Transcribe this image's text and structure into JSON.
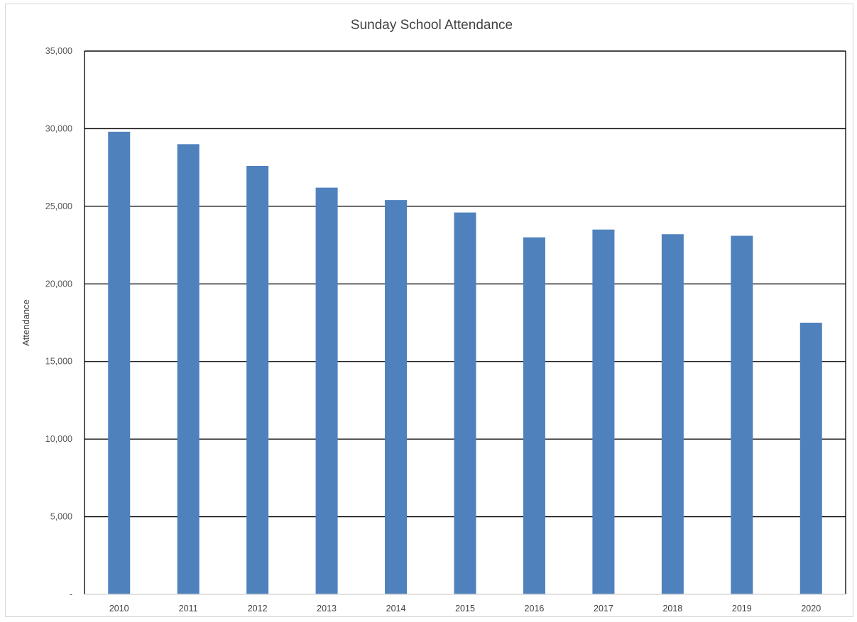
{
  "chart_data": {
    "type": "bar",
    "title": "Sunday School Attendance",
    "xlabel": "",
    "ylabel": "Attendance",
    "categories": [
      "2010",
      "2011",
      "2012",
      "2013",
      "2014",
      "2015",
      "2016",
      "2017",
      "2018",
      "2019",
      "2020"
    ],
    "values": [
      29800,
      29000,
      27600,
      26200,
      25400,
      24600,
      23000,
      23500,
      23200,
      23100,
      17500
    ],
    "ylim": [
      0,
      35000
    ],
    "y_ticks": [
      0,
      5000,
      10000,
      15000,
      20000,
      25000,
      30000,
      35000
    ],
    "y_tick_labels": [
      "-",
      "5,000",
      "10,000",
      "15,000",
      "20,000",
      "25,000",
      "30,000",
      "35,000"
    ],
    "grid": true,
    "legend": "none",
    "bar_color": "#4f81bd"
  }
}
